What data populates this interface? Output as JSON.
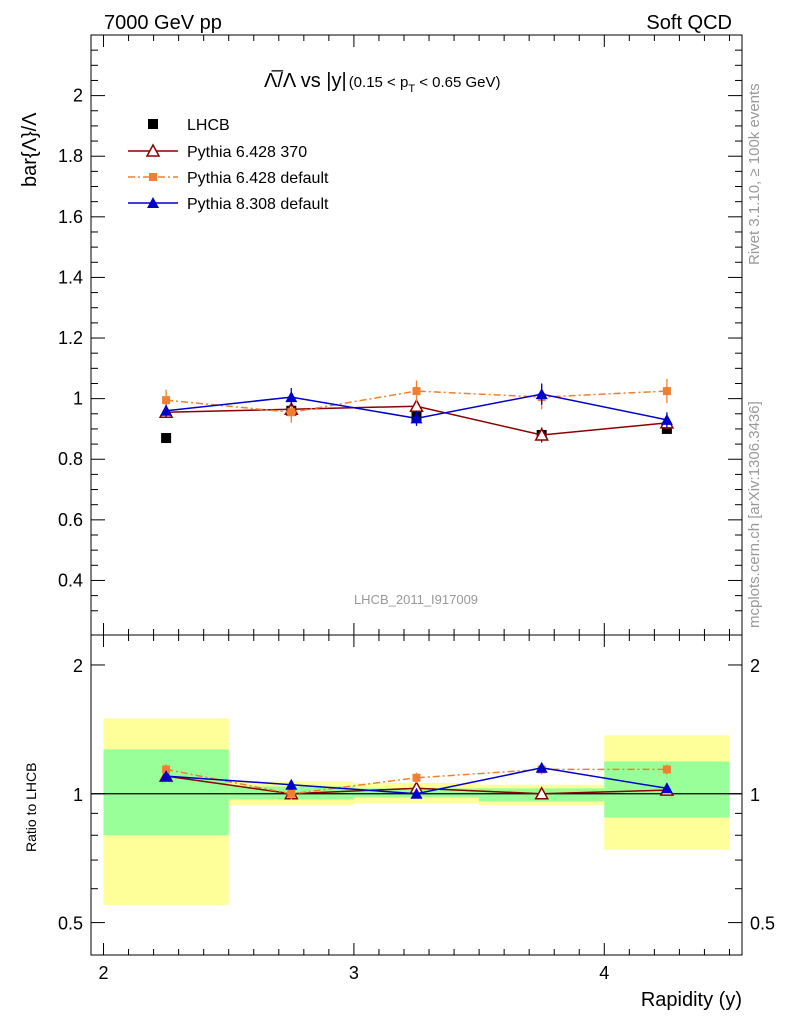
{
  "header": {
    "left": "7000 GeV pp",
    "right": "Soft QCD"
  },
  "side_labels": {
    "rivet": "Rivet 3.1.10, ≥ 100k events",
    "mcplots": "mcplots.cern.ch [arXiv:1306.3436]"
  },
  "colors": {
    "lhcb": "#000000",
    "py6_370": "#8b0000",
    "py6_default": "#f08030",
    "py8_default": "#0000cc",
    "band_yellow": "#ffff99",
    "band_green": "#99ff99",
    "watermark": "#999999"
  },
  "chart_data": [
    {
      "type": "line",
      "title": "Λ̅/Λ vs |y|(0.15 < p_T < 0.65 GeV)",
      "title_parts": {
        "main": "Λ̅/Λ vs |y|",
        "cut_prefix": "(0.15 < p",
        "cut_sub": "T",
        "cut_suffix": " < 0.65 GeV)"
      },
      "ylabel": "bar{Λ}/Λ",
      "watermark": "LHCB_2011_I917009",
      "xlim": [
        1.95,
        4.55
      ],
      "ylim": [
        0.22,
        2.2
      ],
      "y_ticks": [
        0.4,
        0.6,
        0.8,
        1,
        1.2,
        1.4,
        1.6,
        1.8,
        2
      ],
      "y_tick_labels": [
        "0.4",
        "0.6",
        "0.8",
        "1",
        "1.2",
        "1.4",
        "1.6",
        "1.8",
        "2"
      ],
      "legend_position": "top-left",
      "x": [
        2.25,
        2.75,
        3.25,
        3.75,
        4.25
      ],
      "series": [
        {
          "name": "LHCB",
          "marker": "filled-square",
          "line": "none",
          "values": [
            0.87,
            0.96,
            0.94,
            0.88,
            0.9
          ]
        },
        {
          "name": "Pythia 6.428 370",
          "marker": "open-triangle",
          "line": "solid",
          "values": [
            0.955,
            0.965,
            0.975,
            0.88,
            0.92
          ],
          "errors": [
            0.015,
            0.02,
            0.02,
            0.025,
            0.02
          ]
        },
        {
          "name": "Pythia 6.428 default",
          "marker": "filled-square-small",
          "line": "dashdot",
          "values": [
            0.995,
            0.955,
            1.025,
            1.005,
            1.025
          ],
          "errors": [
            0.035,
            0.035,
            0.035,
            0.04,
            0.04
          ]
        },
        {
          "name": "Pythia 8.308 default",
          "marker": "filled-triangle",
          "line": "solid",
          "values": [
            0.96,
            1.005,
            0.935,
            1.015,
            0.93
          ],
          "errors": [
            0.02,
            0.03,
            0.025,
            0.035,
            0.025
          ]
        }
      ]
    },
    {
      "type": "line",
      "ylabel": "Ratio to LHCB",
      "xlabel": "Rapidity (y)",
      "xlim": [
        1.95,
        4.55
      ],
      "yscale": "log",
      "ylim": [
        0.42,
        2.35
      ],
      "y_ticks": [
        0.5,
        1,
        2
      ],
      "y_tick_labels": [
        "0.5",
        "1",
        "2"
      ],
      "x_ticks": [
        2,
        3,
        4
      ],
      "x_tick_labels": [
        "2",
        "3",
        "4"
      ],
      "reference_line": 1,
      "bands": [
        {
          "x": [
            2.0,
            2.5
          ],
          "yellow": [
            0.55,
            1.5
          ],
          "green": [
            0.8,
            1.27
          ]
        },
        {
          "x": [
            2.5,
            3.0
          ],
          "yellow": [
            0.94,
            1.07
          ],
          "green": [
            0.97,
            1.04
          ]
        },
        {
          "x": [
            3.0,
            3.5
          ],
          "yellow": [
            0.95,
            1.06
          ],
          "green": [
            0.98,
            1.03
          ]
        },
        {
          "x": [
            3.5,
            4.0
          ],
          "yellow": [
            0.94,
            1.05
          ],
          "green": [
            0.96,
            1.03
          ]
        },
        {
          "x": [
            4.0,
            4.5
          ],
          "yellow": [
            0.74,
            1.37
          ],
          "green": [
            0.88,
            1.19
          ]
        }
      ],
      "x": [
        2.25,
        2.75,
        3.25,
        3.75,
        4.25
      ],
      "series": [
        {
          "name": "Pythia 6.428 370",
          "values": [
            1.1,
            1.0,
            1.03,
            1.0,
            1.02
          ],
          "errors": [
            0.015,
            0.02,
            0.02,
            0.025,
            0.02
          ]
        },
        {
          "name": "Pythia 6.428 default",
          "values": [
            1.14,
            1.0,
            1.09,
            1.14,
            1.14
          ],
          "errors": [
            0.03,
            0.03,
            0.03,
            0.03,
            0.03
          ]
        },
        {
          "name": "Pythia 8.308 default",
          "values": [
            1.1,
            1.05,
            1.0,
            1.15,
            1.03
          ],
          "errors": [
            0.02,
            0.025,
            0.02,
            0.025,
            0.02
          ]
        }
      ]
    }
  ]
}
